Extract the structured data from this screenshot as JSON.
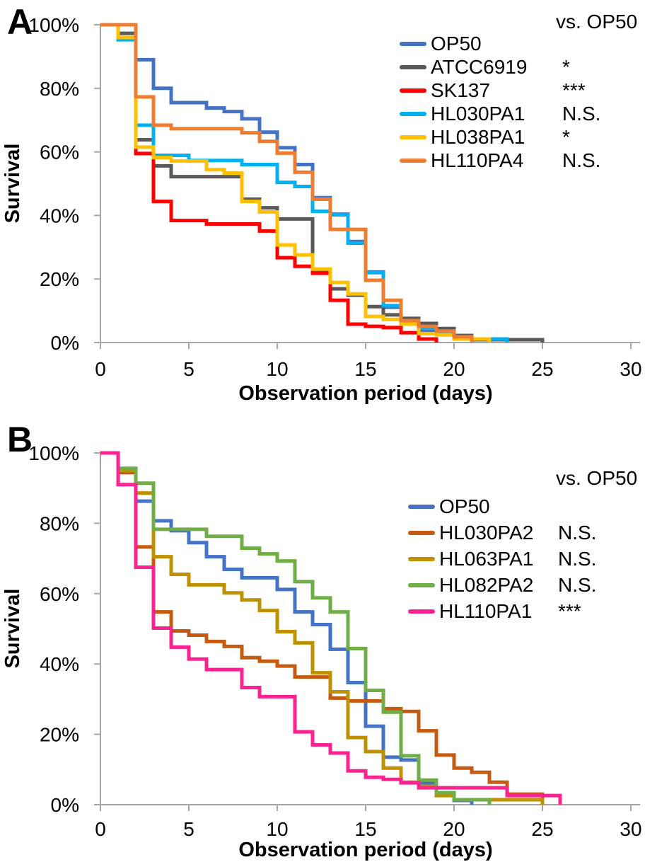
{
  "chart_data": [
    {
      "type": "line",
      "step": "post",
      "panel_label": "A",
      "ylabel": "Survival",
      "xlabel": "Observation period (days)",
      "legend_header": "vs. OP50",
      "legend_position": "upper right",
      "xlim": [
        0,
        30
      ],
      "ylim": [
        0,
        100
      ],
      "x_ticks": [
        0,
        5,
        10,
        15,
        20,
        25,
        30
      ],
      "y_ticks_pct": [
        0,
        20,
        40,
        60,
        80,
        100
      ],
      "y_tick_labels": [
        "0%",
        "20%",
        "40%",
        "60%",
        "80%",
        "100%"
      ],
      "series": [
        {
          "name": "OP50",
          "color": "#4472C4",
          "vs_op50": "",
          "points": [
            [
              0,
              100
            ],
            [
              2,
              89
            ],
            [
              3,
              80
            ],
            [
              4,
              75.5
            ],
            [
              6,
              73.8
            ],
            [
              7,
              72.7
            ],
            [
              8,
              70.4
            ],
            [
              9,
              66.2
            ],
            [
              10,
              61.3
            ],
            [
              11,
              56
            ],
            [
              12,
              45.6
            ],
            [
              13,
              40.4
            ],
            [
              14,
              31.8
            ],
            [
              15,
              22.2
            ],
            [
              16,
              11.1
            ],
            [
              17,
              6.7
            ],
            [
              18,
              3.6
            ],
            [
              19,
              3.3
            ],
            [
              20,
              2.2
            ],
            [
              21,
              1.1
            ],
            [
              22,
              0
            ]
          ]
        },
        {
          "name": "ATCC6919",
          "color": "#595959",
          "vs_op50": "*",
          "points": [
            [
              0,
              100
            ],
            [
              1,
              97.3
            ],
            [
              2,
              63.8
            ],
            [
              3,
              55.6
            ],
            [
              4,
              52.2
            ],
            [
              8,
              45.1
            ],
            [
              9,
              42.4
            ],
            [
              10,
              38.9
            ],
            [
              12,
              22.7
            ],
            [
              13,
              16.9
            ],
            [
              14,
              14.9
            ],
            [
              15,
              11.3
            ],
            [
              16,
              8.7
            ],
            [
              17,
              7.6
            ],
            [
              18,
              6
            ],
            [
              19,
              4.4
            ],
            [
              20,
              2.2
            ],
            [
              21,
              0.9
            ],
            [
              25,
              0
            ]
          ]
        },
        {
          "name": "SK137",
          "color": "#FF0000",
          "vs_op50": "***",
          "points": [
            [
              0,
              100
            ],
            [
              2,
              59.5
            ],
            [
              3,
              44.4
            ],
            [
              4,
              38.4
            ],
            [
              6,
              37.3
            ],
            [
              9,
              35.1
            ],
            [
              10,
              26.7
            ],
            [
              11,
              24
            ],
            [
              12,
              21.8
            ],
            [
              13,
              13.3
            ],
            [
              14,
              5.8
            ],
            [
              15,
              5.1
            ],
            [
              16,
              4.7
            ],
            [
              17,
              3.1
            ],
            [
              18,
              1.1
            ],
            [
              19,
              0
            ]
          ]
        },
        {
          "name": "HL030PA1",
          "color": "#00B0F0",
          "vs_op50": "N.S.",
          "points": [
            [
              0,
              100
            ],
            [
              1,
              95.3
            ],
            [
              2,
              68.4
            ],
            [
              3,
              58.9
            ],
            [
              5,
              57.3
            ],
            [
              8,
              56
            ],
            [
              10,
              50.4
            ],
            [
              11,
              49.1
            ],
            [
              12,
              41.3
            ],
            [
              13,
              40.2
            ],
            [
              14,
              31.3
            ],
            [
              15,
              22
            ],
            [
              16,
              11.6
            ],
            [
              17,
              6.2
            ],
            [
              18,
              4.7
            ],
            [
              19,
              2.9
            ],
            [
              20,
              1.8
            ],
            [
              21,
              1.1
            ],
            [
              23,
              0
            ]
          ]
        },
        {
          "name": "HL038PA1",
          "color": "#FFC000",
          "vs_op50": "*",
          "points": [
            [
              0,
              100
            ],
            [
              1,
              96
            ],
            [
              2,
              61.5
            ],
            [
              3,
              58.2
            ],
            [
              4,
              57.1
            ],
            [
              6,
              54.4
            ],
            [
              7,
              53.3
            ],
            [
              8,
              44.4
            ],
            [
              9,
              41.1
            ],
            [
              10,
              30.7
            ],
            [
              11,
              27.6
            ],
            [
              12,
              23.1
            ],
            [
              13,
              18.9
            ],
            [
              14,
              15.3
            ],
            [
              15,
              8.2
            ],
            [
              16,
              7.3
            ],
            [
              17,
              5.8
            ],
            [
              18,
              2.8
            ],
            [
              19,
              2.4
            ],
            [
              20,
              1.1
            ],
            [
              22,
              0
            ]
          ]
        },
        {
          "name": "HL110PA4",
          "color": "#ED7D31",
          "vs_op50": "N.S.",
          "points": [
            [
              0,
              100
            ],
            [
              2,
              77.3
            ],
            [
              3,
              68.4
            ],
            [
              4,
              67.3
            ],
            [
              8,
              66
            ],
            [
              9,
              63.3
            ],
            [
              10,
              59.6
            ],
            [
              11,
              53.6
            ],
            [
              12,
              45.1
            ],
            [
              13,
              35.6
            ],
            [
              15,
              19.6
            ],
            [
              16,
              13.3
            ],
            [
              17,
              6.9
            ],
            [
              18,
              5.1
            ],
            [
              19,
              3.6
            ],
            [
              20,
              1.8
            ],
            [
              21,
              0
            ]
          ]
        }
      ]
    },
    {
      "type": "line",
      "step": "post",
      "panel_label": "B",
      "ylabel": "Survival",
      "xlabel": "Observation period (days)",
      "legend_header": "vs. OP50",
      "legend_position": "upper right",
      "xlim": [
        0,
        30
      ],
      "ylim": [
        0,
        100
      ],
      "x_ticks": [
        0,
        5,
        10,
        15,
        20,
        25,
        30
      ],
      "y_ticks_pct": [
        0,
        20,
        40,
        60,
        80,
        100
      ],
      "y_tick_labels": [
        "0%",
        "20%",
        "40%",
        "60%",
        "80%",
        "100%"
      ],
      "series": [
        {
          "name": "OP50",
          "color": "#4472C4",
          "vs_op50": "",
          "points": [
            [
              0,
              100
            ],
            [
              1,
              95.6
            ],
            [
              2,
              86.3
            ],
            [
              3,
              80.7
            ],
            [
              4,
              77.9
            ],
            [
              5,
              74.5
            ],
            [
              6,
              70.5
            ],
            [
              7,
              66.9
            ],
            [
              8,
              64.5
            ],
            [
              10,
              61.2
            ],
            [
              11,
              54.8
            ],
            [
              12,
              51.2
            ],
            [
              13,
              44.2
            ],
            [
              14,
              34.7
            ],
            [
              15,
              22.3
            ],
            [
              16,
              13.5
            ],
            [
              17,
              12.7
            ],
            [
              18,
              6.2
            ],
            [
              19,
              3.2
            ],
            [
              20,
              1.2
            ],
            [
              21,
              0
            ]
          ]
        },
        {
          "name": "HL030PA2",
          "color": "#C55A11",
          "vs_op50": "N.S.",
          "points": [
            [
              0,
              100
            ],
            [
              1,
              94.4
            ],
            [
              2,
              73.3
            ],
            [
              3,
              54.8
            ],
            [
              4,
              49.4
            ],
            [
              5,
              48.2
            ],
            [
              6,
              46.4
            ],
            [
              7,
              45
            ],
            [
              8,
              41.8
            ],
            [
              9,
              40.8
            ],
            [
              10,
              39.4
            ],
            [
              11,
              36.3
            ],
            [
              13,
              30.3
            ],
            [
              14,
              29.5
            ],
            [
              16,
              27.3
            ],
            [
              17,
              26.5
            ],
            [
              18,
              21
            ],
            [
              19,
              14.1
            ],
            [
              20,
              10.4
            ],
            [
              21,
              9.2
            ],
            [
              22,
              6.4
            ],
            [
              23,
              3
            ],
            [
              25,
              0
            ]
          ]
        },
        {
          "name": "HL063PA1",
          "color": "#BF9000",
          "vs_op50": "N.S.",
          "points": [
            [
              0,
              100
            ],
            [
              1,
              95
            ],
            [
              2,
              88.6
            ],
            [
              3,
              70.5
            ],
            [
              4,
              65.5
            ],
            [
              5,
              62.5
            ],
            [
              7,
              60.2
            ],
            [
              8,
              58.2
            ],
            [
              9,
              55.2
            ],
            [
              10,
              49.2
            ],
            [
              11,
              46
            ],
            [
              12,
              37.5
            ],
            [
              13,
              32.1
            ],
            [
              14,
              19.1
            ],
            [
              15,
              15.1
            ],
            [
              16,
              10.4
            ],
            [
              17,
              6.4
            ],
            [
              18,
              5.2
            ],
            [
              19,
              2.6
            ],
            [
              20,
              1.4
            ],
            [
              25,
              0
            ]
          ]
        },
        {
          "name": "HL082PA2",
          "color": "#70AD47",
          "vs_op50": "N.S.",
          "points": [
            [
              0,
              100
            ],
            [
              1,
              95.6
            ],
            [
              2,
              91.4
            ],
            [
              3,
              78.3
            ],
            [
              6,
              76.3
            ],
            [
              8,
              72.9
            ],
            [
              9,
              71.3
            ],
            [
              10,
              69.3
            ],
            [
              11,
              63.4
            ],
            [
              12,
              58.8
            ],
            [
              13,
              54.8
            ],
            [
              14,
              44.4
            ],
            [
              15,
              32.5
            ],
            [
              16,
              26.3
            ],
            [
              17,
              13.9
            ],
            [
              18,
              7
            ],
            [
              19,
              3.4
            ],
            [
              20,
              1.4
            ],
            [
              22,
              0
            ]
          ]
        },
        {
          "name": "HL110PA1",
          "color": "#FA2390",
          "vs_op50": "***",
          "points": [
            [
              0,
              100
            ],
            [
              1,
              91
            ],
            [
              2,
              67.5
            ],
            [
              3,
              50.2
            ],
            [
              4,
              44.8
            ],
            [
              5,
              41.4
            ],
            [
              6,
              38.4
            ],
            [
              8,
              33.3
            ],
            [
              9,
              30.7
            ],
            [
              11,
              20.7
            ],
            [
              12,
              17
            ],
            [
              13,
              14.7
            ],
            [
              14,
              9.6
            ],
            [
              15,
              7.8
            ],
            [
              16,
              7.2
            ],
            [
              17,
              6.2
            ],
            [
              18,
              4.8
            ],
            [
              23,
              2.6
            ],
            [
              26,
              0
            ]
          ]
        }
      ]
    }
  ]
}
